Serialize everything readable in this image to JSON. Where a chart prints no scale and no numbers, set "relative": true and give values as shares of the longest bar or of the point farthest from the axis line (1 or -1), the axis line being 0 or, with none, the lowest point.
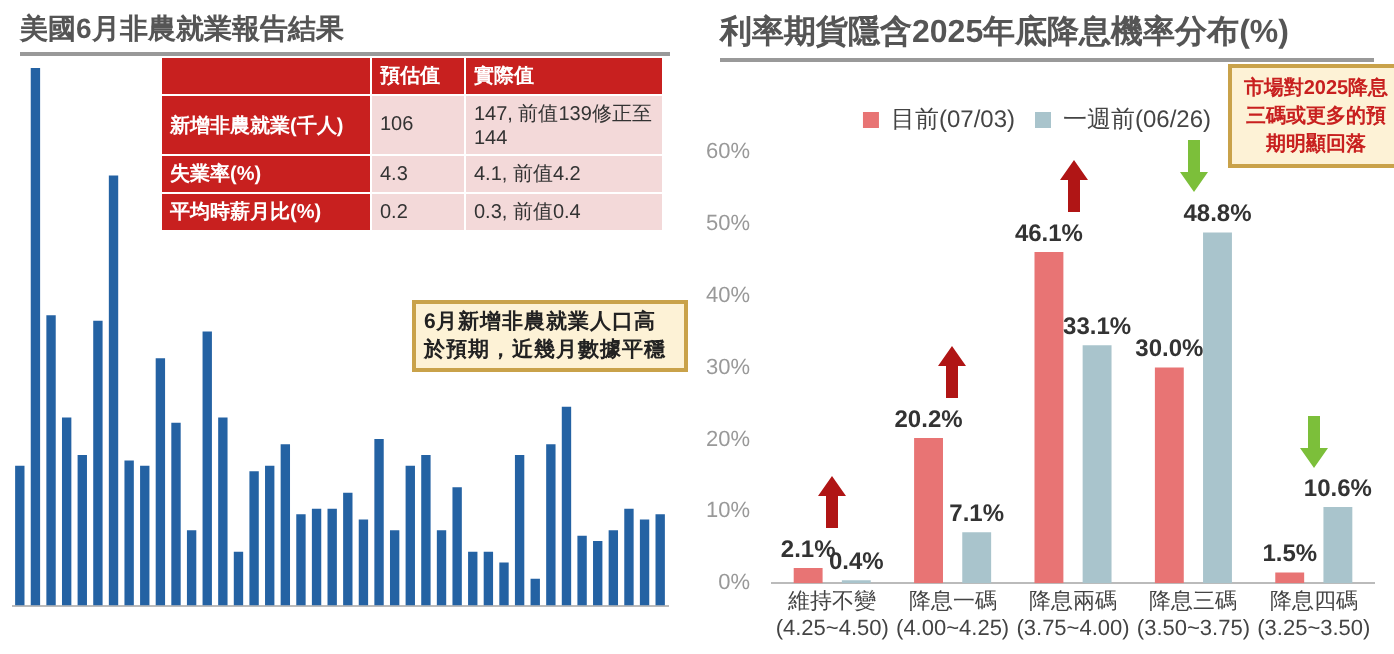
{
  "chart_data": [
    {
      "type": "bar",
      "title": "美國6月非農就業報告結果",
      "relative": true,
      "grid": false,
      "legend": false,
      "categories": [
        null,
        null,
        null,
        null,
        null,
        null,
        null,
        null,
        null,
        null,
        null,
        null,
        null,
        null,
        null,
        null,
        null,
        null,
        null,
        null,
        null,
        null,
        null,
        null,
        null,
        null,
        null,
        null,
        null,
        null,
        null,
        null,
        null,
        null,
        null,
        null,
        null,
        null,
        null,
        null,
        null,
        null
      ],
      "values": [
        0.26,
        1.0,
        0.54,
        0.35,
        0.28,
        0.53,
        0.8,
        0.27,
        0.26,
        0.46,
        0.34,
        0.14,
        0.51,
        0.35,
        0.1,
        0.25,
        0.26,
        0.3,
        0.17,
        0.18,
        0.18,
        0.21,
        0.16,
        0.31,
        0.14,
        0.26,
        0.28,
        0.14,
        0.22,
        0.1,
        0.1,
        0.08,
        0.28,
        0.05,
        0.3,
        0.37,
        0.13,
        0.12,
        0.14,
        0.18,
        0.16,
        0.17
      ],
      "color": "#2462a3",
      "annotations": [
        "預估值",
        "實際值",
        "新增非農就業(千人)",
        "106",
        "147, 前值139修正至144",
        "失業率(%)",
        "4.3",
        "4.1, 前值4.2",
        "平均時薪月比(%)",
        "0.2",
        "0.3, 前值0.4",
        "6月新增非農就業人口高於預期，近幾月數據平穩"
      ]
    },
    {
      "type": "bar",
      "title": "利率期貨隱含2025年底降息機率分布(%)",
      "legend": "top",
      "grid": false,
      "categories": [
        "維持不變\n(4.25~4.50)",
        "降息一碼\n(4.00~4.25)",
        "降息兩碼\n(3.75~4.00)",
        "降息三碼\n(3.50~3.75)",
        "降息四碼\n(3.25~3.50)"
      ],
      "series": [
        {
          "name": "目前(07/03)",
          "color": "#e87474",
          "values": [
            2.1,
            20.2,
            46.1,
            30.0,
            1.5
          ],
          "value_labels": [
            "2.1%",
            "20.2%",
            "46.1%",
            "30.0%",
            "1.5%"
          ]
        },
        {
          "name": "一週前(06/26)",
          "color": "#a9c4cc",
          "values": [
            0.4,
            7.1,
            33.1,
            48.8,
            10.6
          ],
          "value_labels": [
            "0.4%",
            "7.1%",
            "33.1%",
            "48.8%",
            "10.6%"
          ]
        }
      ],
      "ylim": [
        0,
        60
      ],
      "yticks": [
        {
          "value": 0,
          "label": "0%"
        },
        {
          "value": 10,
          "label": "10%"
        },
        {
          "value": 20,
          "label": "20%"
        },
        {
          "value": 30,
          "label": "30%"
        },
        {
          "value": 40,
          "label": "40%"
        },
        {
          "value": 50,
          "label": "50%"
        },
        {
          "value": 60,
          "label": "60%"
        }
      ],
      "annotations": [
        "市場對2025降息三碼或更多的預期明顯回落"
      ]
    }
  ]
}
